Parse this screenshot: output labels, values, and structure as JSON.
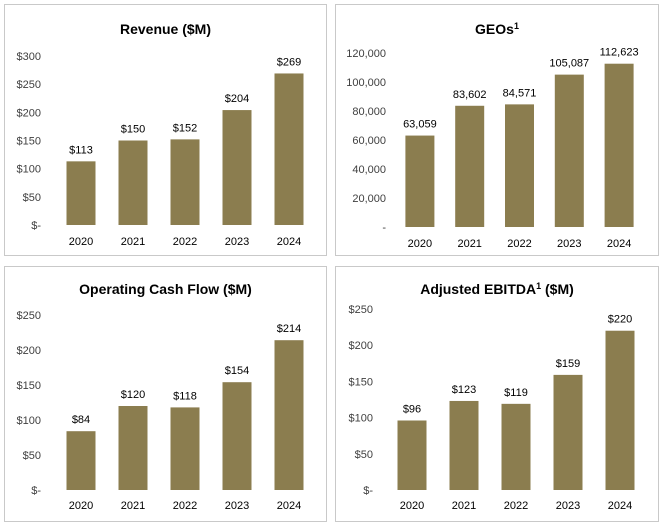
{
  "colors": {
    "bar": "#8B7D4F",
    "border": "#c9c9c9"
  },
  "chart_data": [
    {
      "type": "bar",
      "title": "Revenue ($M)",
      "title_superscript": "",
      "title_suffix": "",
      "categories": [
        "2020",
        "2021",
        "2022",
        "2023",
        "2024"
      ],
      "values": [
        113,
        150,
        152,
        204,
        269
      ],
      "data_labels": [
        "$113",
        "$150",
        "$152",
        "$204",
        "$269"
      ],
      "ylim": [
        0,
        300
      ],
      "y_ticks": [
        0,
        50,
        100,
        150,
        200,
        250,
        300
      ],
      "y_tick_labels": [
        "$-",
        "$50",
        "$100",
        "$150",
        "$200",
        "$250",
        "$300"
      ],
      "xlabel": "",
      "ylabel": ""
    },
    {
      "type": "bar",
      "title": "GEOs",
      "title_superscript": "1",
      "title_suffix": "",
      "categories": [
        "2020",
        "2021",
        "2022",
        "2023",
        "2024"
      ],
      "values": [
        63059,
        83602,
        84571,
        105087,
        112623
      ],
      "data_labels": [
        "63,059",
        "83,602",
        "84,571",
        "105,087",
        "112,623"
      ],
      "ylim": [
        0,
        120000
      ],
      "y_ticks": [
        0,
        20000,
        40000,
        60000,
        80000,
        100000,
        120000
      ],
      "y_tick_labels": [
        "-",
        "20,000",
        "40,000",
        "60,000",
        "80,000",
        "100,000",
        "120,000"
      ],
      "xlabel": "",
      "ylabel": ""
    },
    {
      "type": "bar",
      "title": "Operating Cash Flow ($M)",
      "title_superscript": "",
      "title_suffix": "",
      "categories": [
        "2020",
        "2021",
        "2022",
        "2023",
        "2024"
      ],
      "values": [
        84,
        120,
        118,
        154,
        214
      ],
      "data_labels": [
        "$84",
        "$120",
        "$118",
        "$154",
        "$214"
      ],
      "ylim": [
        0,
        250
      ],
      "y_ticks": [
        0,
        50,
        100,
        150,
        200,
        250
      ],
      "y_tick_labels": [
        "$-",
        "$50",
        "$100",
        "$150",
        "$200",
        "$250"
      ],
      "xlabel": "",
      "ylabel": ""
    },
    {
      "type": "bar",
      "title": "Adjusted EBITDA",
      "title_superscript": "1",
      "title_suffix": " ($M)",
      "categories": [
        "2020",
        "2021",
        "2022",
        "2023",
        "2024"
      ],
      "values": [
        96,
        123,
        119,
        159,
        220
      ],
      "data_labels": [
        "$96",
        "$123",
        "$119",
        "$159",
        "$220"
      ],
      "ylim": [
        0,
        250
      ],
      "y_ticks": [
        0,
        50,
        100,
        150,
        200,
        250
      ],
      "y_tick_labels": [
        "$-",
        "$50",
        "$100",
        "$150",
        "$200",
        "$250"
      ],
      "xlabel": "",
      "ylabel": ""
    }
  ]
}
